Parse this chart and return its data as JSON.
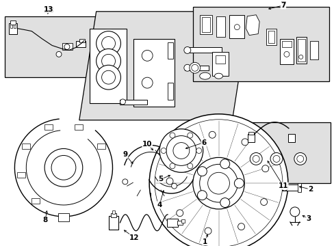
{
  "bg": "#ffffff",
  "lc": "#000000",
  "box_fill": "#e0e0e0",
  "fig_w": 4.89,
  "fig_h": 3.6,
  "dpi": 100
}
